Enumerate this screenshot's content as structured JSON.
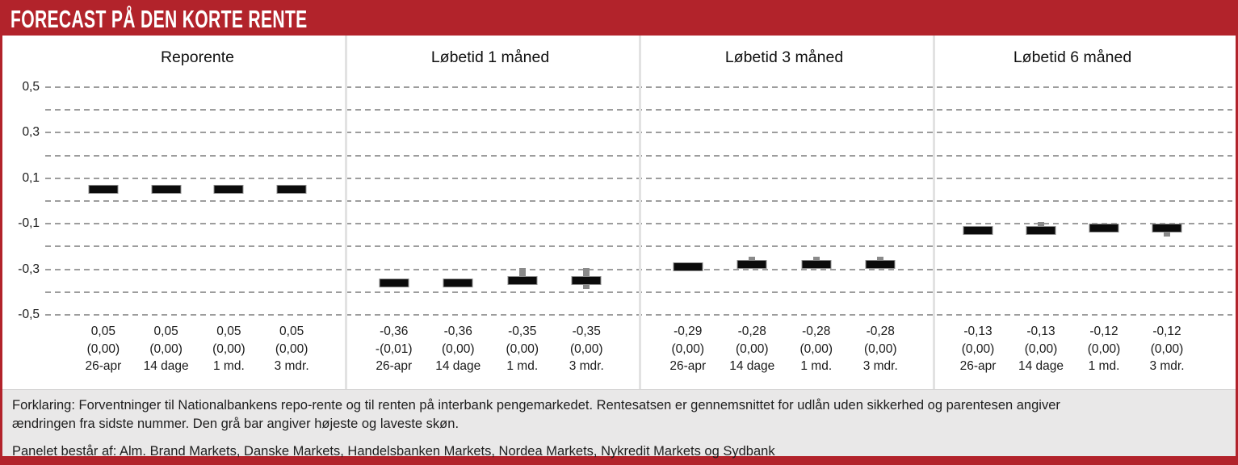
{
  "header": {
    "title": "FORECAST PÅ DEN KORTE RENTE"
  },
  "footer": {
    "forklaring_line1": "Forklaring: Forventninger til Nationalbankens repo-rente og til renten på interbank pengemarkedet. Rentesatsen er gennemsnittet for udlån uden sikkerhed og parentesen angiver",
    "forklaring_line2": "ændringen fra sidste nummer. Den grå bar angiver højeste og laveste skøn.",
    "panelet_line": "Panelet består af: Alm. Brand Markets, Danske Markets, Handelsbanken Markets, Nordea Markets, Nykredit Markets og Sydbank"
  },
  "colors": {
    "brand_red": "#b2232b",
    "bar_black": "#0b0b0b",
    "range_gray": "#8a8a8a",
    "footer_gray": "#e9e8e8",
    "gridline_gray": "#9d9d9d"
  },
  "chart_data": {
    "type": "bar",
    "title": "FORECAST PÅ DEN KORTE RENTE",
    "ylabel": "",
    "xlabel": "",
    "ylim": [
      -0.5,
      0.5
    ],
    "grid": true,
    "gridline_values": [
      0.5,
      0.4,
      0.3,
      0.2,
      0.1,
      0.0,
      -0.1,
      -0.2,
      -0.3,
      -0.4,
      -0.5
    ],
    "ytick_labels": [
      {
        "value": 0.5,
        "label": "0,5"
      },
      {
        "value": 0.3,
        "label": "0,3"
      },
      {
        "value": 0.1,
        "label": "0,1"
      },
      {
        "value": -0.1,
        "label": "-0,1"
      },
      {
        "value": -0.3,
        "label": "-0,3"
      },
      {
        "value": -0.5,
        "label": "-0,5"
      }
    ],
    "categories": [
      "26-apr",
      "14 dage",
      "1 md.",
      "3 mdr."
    ],
    "range_note": "Den grå bar angiver højeste og laveste skøn",
    "panels": [
      {
        "title": "Reporente",
        "points": [
          {
            "period": "26-apr",
            "value": 0.05,
            "value_label": "0,05",
            "change_label": "(0,00)",
            "hi": 0.05,
            "lo": 0.05
          },
          {
            "period": "14 dage",
            "value": 0.05,
            "value_label": "0,05",
            "change_label": "(0,00)",
            "hi": 0.05,
            "lo": 0.05
          },
          {
            "period": "1 md.",
            "value": 0.05,
            "value_label": "0,05",
            "change_label": "(0,00)",
            "hi": 0.05,
            "lo": 0.05
          },
          {
            "period": "3 mdr.",
            "value": 0.05,
            "value_label": "0,05",
            "change_label": "(0,00)",
            "hi": 0.05,
            "lo": 0.05
          }
        ]
      },
      {
        "title": "Løbetid 1 måned",
        "points": [
          {
            "period": "26-apr",
            "value": -0.36,
            "value_label": "-0,36",
            "change_label": "-(0,01)",
            "hi": -0.36,
            "lo": -0.36
          },
          {
            "period": "14 dage",
            "value": -0.36,
            "value_label": "-0,36",
            "change_label": "(0,00)",
            "hi": -0.36,
            "lo": -0.36
          },
          {
            "period": "1 md.",
            "value": -0.35,
            "value_label": "-0,35",
            "change_label": "(0,00)",
            "hi": -0.3,
            "lo": -0.35
          },
          {
            "period": "3 mdr.",
            "value": -0.35,
            "value_label": "-0,35",
            "change_label": "(0,00)",
            "hi": -0.3,
            "lo": -0.38
          }
        ]
      },
      {
        "title": "Løbetid 3 måned",
        "points": [
          {
            "period": "26-apr",
            "value": -0.29,
            "value_label": "-0,29",
            "change_label": "(0,00)",
            "hi": -0.29,
            "lo": -0.29
          },
          {
            "period": "14 dage",
            "value": -0.28,
            "value_label": "-0,28",
            "change_label": "(0,00)",
            "hi": -0.25,
            "lo": -0.28
          },
          {
            "period": "1 md.",
            "value": -0.28,
            "value_label": "-0,28",
            "change_label": "(0,00)",
            "hi": -0.25,
            "lo": -0.28
          },
          {
            "period": "3 mdr.",
            "value": -0.28,
            "value_label": "-0,28",
            "change_label": "(0,00)",
            "hi": -0.25,
            "lo": -0.28
          }
        ]
      },
      {
        "title": "Løbetid 6 måned",
        "points": [
          {
            "period": "26-apr",
            "value": -0.13,
            "value_label": "-0,13",
            "change_label": "(0,00)",
            "hi": -0.13,
            "lo": -0.13
          },
          {
            "period": "14 dage",
            "value": -0.13,
            "value_label": "-0,13",
            "change_label": "(0,00)",
            "hi": -0.1,
            "lo": -0.13
          },
          {
            "period": "1 md.",
            "value": -0.12,
            "value_label": "-0,12",
            "change_label": "(0,00)",
            "hi": -0.12,
            "lo": -0.12
          },
          {
            "period": "3 mdr.",
            "value": -0.12,
            "value_label": "-0,12",
            "change_label": "(0,00)",
            "hi": -0.12,
            "lo": -0.15
          }
        ]
      }
    ]
  }
}
